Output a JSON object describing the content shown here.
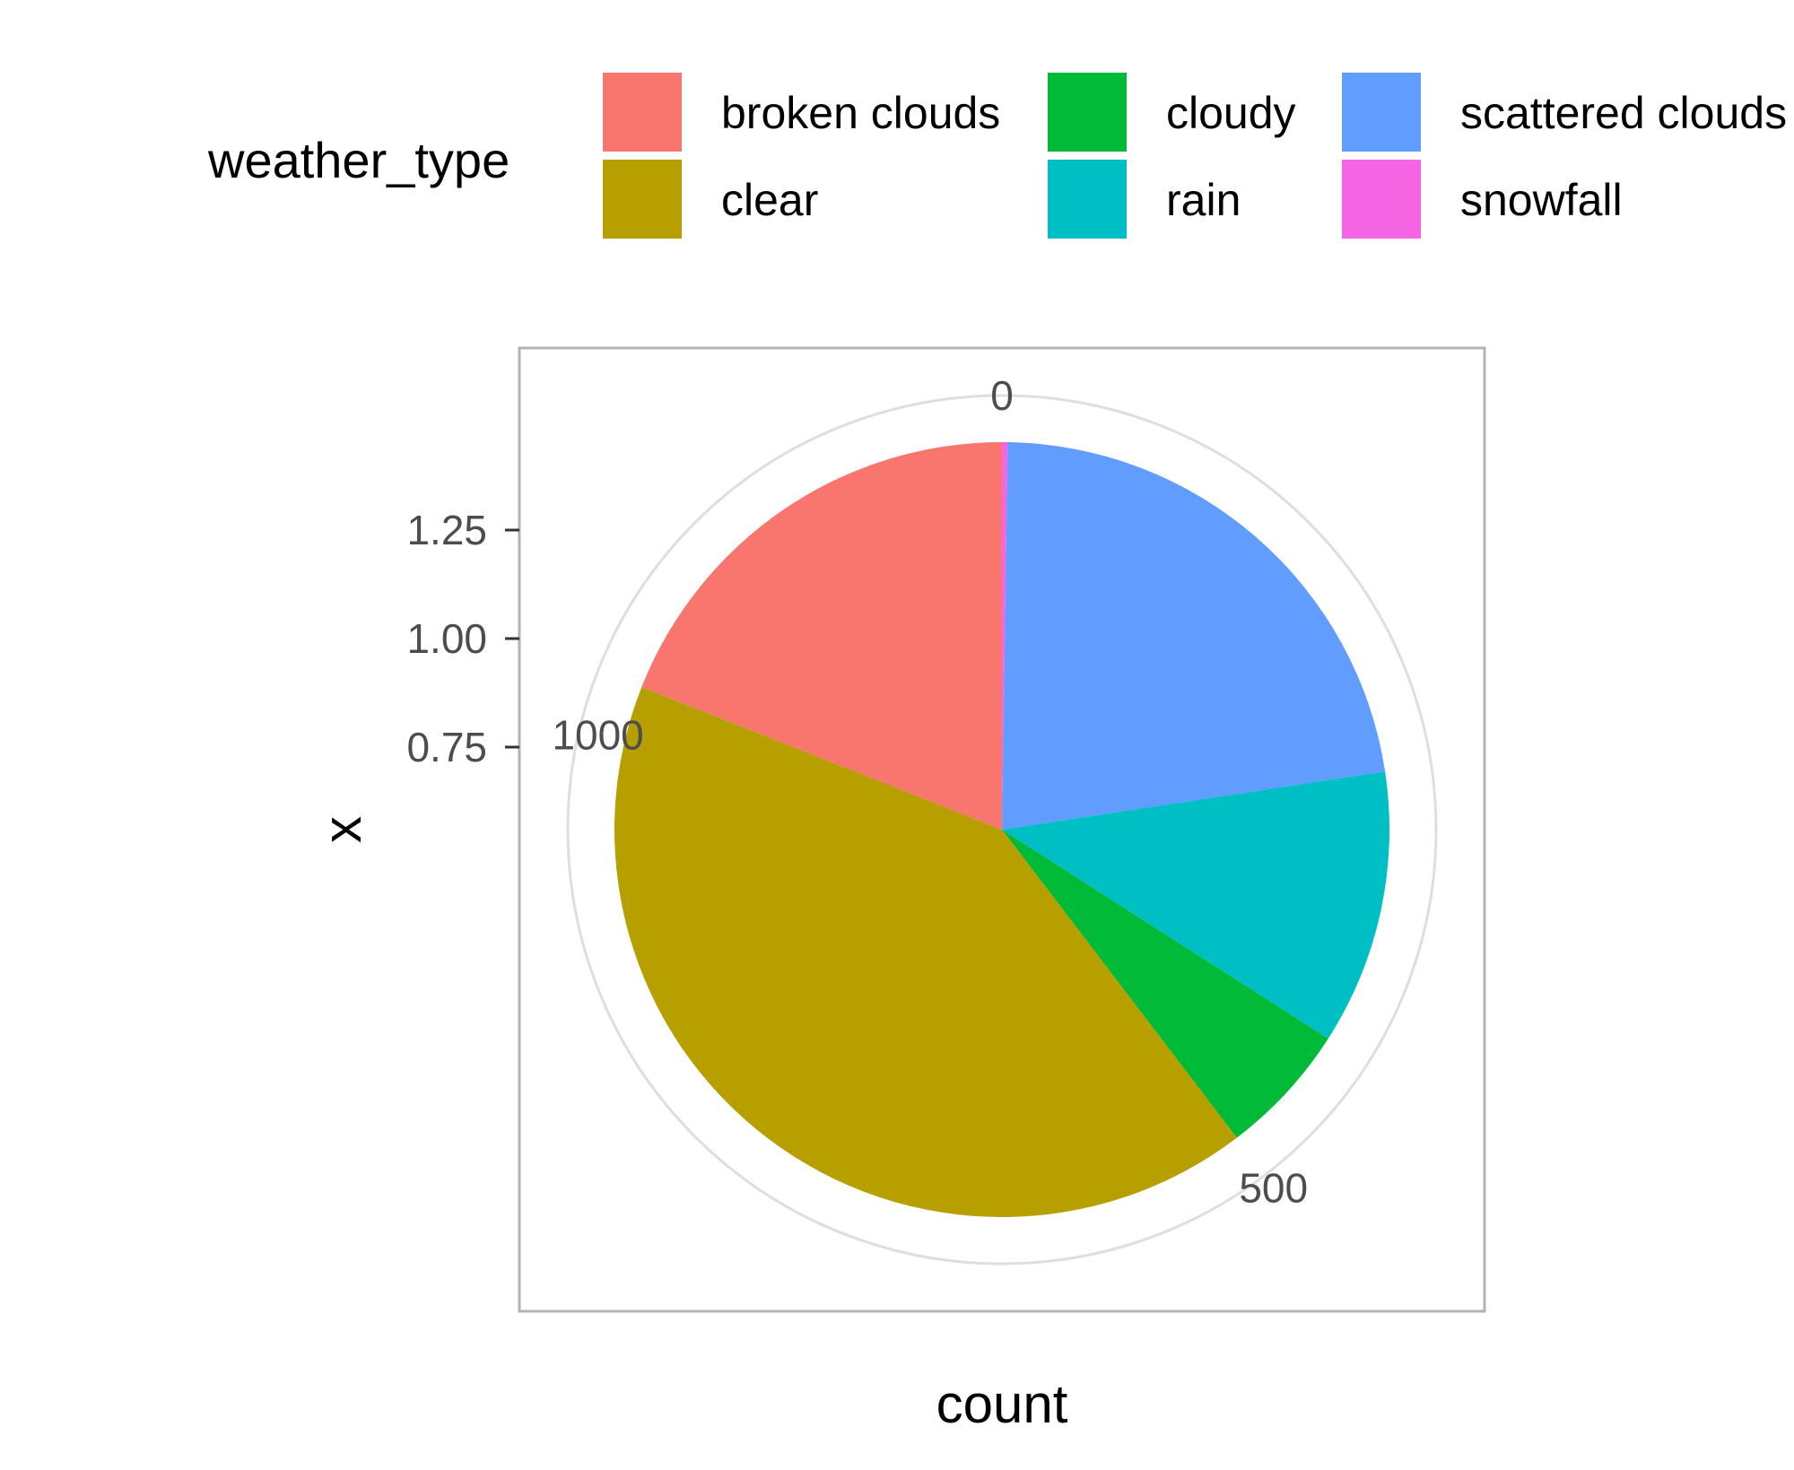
{
  "chart_data": {
    "type": "pie",
    "xlabel": "count",
    "ylabel": "x",
    "legend": {
      "title": "weather_type",
      "position": "top"
    },
    "categories": [
      "broken clouds",
      "clear",
      "cloudy",
      "rain",
      "scattered clouds",
      "snowfall"
    ],
    "values": [
      242,
      527,
      71,
      146,
      285,
      3
    ],
    "colors": {
      "broken clouds": "#F8766D",
      "clear": "#B79F00",
      "cloudy": "#00BA38",
      "rain": "#00BFC4",
      "scattered clouds": "#619CFF",
      "snowfall": "#F564E3"
    },
    "angular_ticks": [
      {
        "value": 0,
        "label": "0"
      },
      {
        "value": 500,
        "label": "500"
      },
      {
        "value": 1000,
        "label": "1000"
      }
    ],
    "radial_ticks": [
      {
        "value": 0.75,
        "label": "0.75"
      },
      {
        "value": 1.0,
        "label": "1.00"
      },
      {
        "value": 1.25,
        "label": "1.25"
      }
    ],
    "ylim": [
      0.5,
      1.5
    ],
    "grid": true
  }
}
